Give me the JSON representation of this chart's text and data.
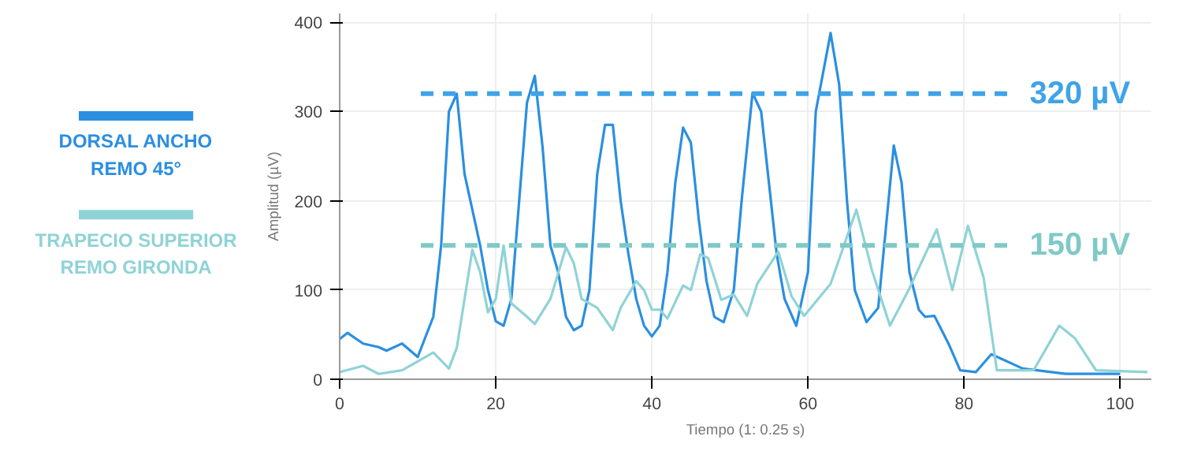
{
  "chart_data": {
    "type": "line",
    "xlabel": "Tiempo (1: 0.25 s)",
    "ylabel": "Amplitud (µV)",
    "xlim": [
      0,
      104
    ],
    "ylim": [
      0,
      410
    ],
    "xticks": [
      0,
      20,
      40,
      60,
      80,
      100
    ],
    "yticks": [
      0,
      100,
      200,
      300,
      400
    ],
    "grid": true,
    "legend": "left",
    "line_style": "solid",
    "series": [
      {
        "name": "DORSAL ANCHO\nREMO 45°",
        "color": "#2b8fe0",
        "x": [
          0,
          1,
          3,
          5,
          6,
          8,
          10,
          12,
          13,
          14,
          15,
          16,
          18,
          19,
          20,
          21,
          22,
          23,
          24,
          25,
          26,
          27,
          28,
          29,
          30,
          31,
          32,
          33,
          34,
          35,
          36,
          37,
          38,
          39,
          40,
          41,
          42,
          43,
          44,
          45,
          46,
          47,
          48,
          49.2,
          50.5,
          51.5,
          52.9,
          54,
          55,
          56,
          57,
          58.5,
          60,
          61,
          62.9,
          64,
          65,
          66,
          67.5,
          69,
          71,
          72,
          73,
          74.2,
          75,
          76.2,
          78,
          79.5,
          81.5,
          83.5,
          87.5,
          93,
          100
        ],
        "values": [
          45,
          52,
          40,
          36,
          32,
          40,
          25,
          70,
          150,
          300,
          320,
          230,
          150,
          100,
          65,
          60,
          90,
          200,
          310,
          340,
          260,
          150,
          120,
          70,
          55,
          60,
          100,
          230,
          285,
          285,
          200,
          140,
          90,
          60,
          48,
          60,
          120,
          220,
          282,
          265,
          180,
          110,
          70,
          64,
          100,
          200,
          321,
          300,
          220,
          140,
          90,
          60,
          120,
          300,
          388,
          330,
          200,
          100,
          64,
          80,
          262,
          220,
          120,
          78,
          70,
          71,
          40,
          10,
          8,
          28,
          12,
          6,
          6
        ]
      },
      {
        "name": "TRAPECIO SUPERIOR\nREMO GIRONDA",
        "color": "#8fd3d6",
        "x": [
          0,
          3,
          5,
          8,
          10,
          12,
          14,
          15,
          17,
          18,
          19,
          20,
          21,
          22,
          24,
          25,
          27,
          29,
          30,
          31,
          33,
          35,
          36,
          38,
          39,
          40,
          41,
          42,
          44,
          45,
          46.2,
          47.2,
          48.9,
          50.5,
          52.2,
          53.5,
          56.2,
          57.9,
          59.5,
          62.9,
          66.2,
          68.2,
          70.5,
          72.9,
          76.5,
          78.5,
          80.5,
          82.5,
          84.2,
          88.9,
          92.2,
          94.2,
          96.9,
          103.5
        ],
        "values": [
          8,
          15,
          6,
          10,
          20,
          30,
          12,
          35,
          145,
          120,
          75,
          90,
          150,
          85,
          70,
          62,
          90,
          148,
          130,
          90,
          80,
          55,
          80,
          110,
          100,
          78,
          78,
          68,
          105,
          100,
          140,
          136,
          89,
          95,
          71,
          107,
          143,
          93,
          71,
          107,
          190,
          122,
          60,
          100,
          168,
          100,
          172,
          114,
          10,
          10,
          60,
          46,
          10,
          8
        ]
      }
    ],
    "ref_lines": [
      {
        "axis": "y",
        "value": 320,
        "label": "320 µV",
        "color": "#3fa3e8",
        "line_style": "dashed"
      },
      {
        "axis": "y",
        "value": 150,
        "label": "150 µV",
        "color": "#7fc9c6",
        "line_style": "dashed"
      }
    ]
  }
}
